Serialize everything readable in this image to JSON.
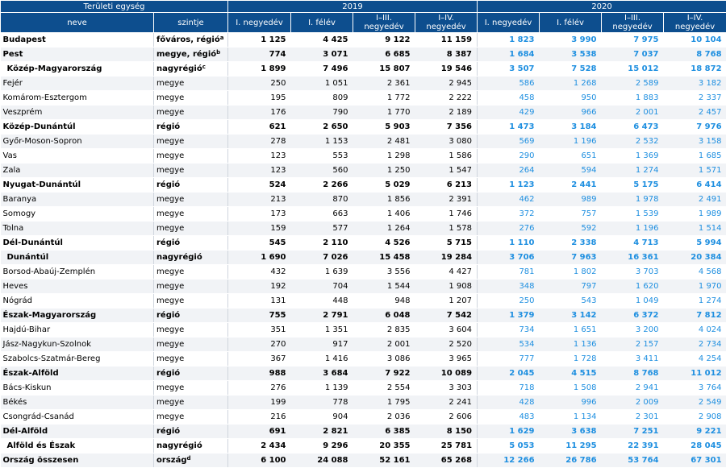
{
  "header": {
    "area_unit": "Területi egység",
    "name_col": "neve",
    "level_col": "szintje",
    "year1": "2019",
    "year2": "2020",
    "periods": [
      "I. negyedév",
      "I. félév",
      "I–III. negyedév",
      "I–IV. negyedév"
    ]
  },
  "rows": [
    {
      "name": "Budapest",
      "level": "főváros, régió",
      "sup": "a",
      "bold": true,
      "indent": false,
      "y2019": [
        "1 125",
        "4 425",
        "9 122",
        "11 159"
      ],
      "y2020": [
        "1 823",
        "3 990",
        "7 975",
        "10 104"
      ]
    },
    {
      "name": "Pest",
      "level": "megye, régió",
      "sup": "b",
      "bold": true,
      "indent": false,
      "y2019": [
        "774",
        "3 071",
        "6 685",
        "8 387"
      ],
      "y2020": [
        "1 684",
        "3 538",
        "7 037",
        "8 768"
      ]
    },
    {
      "name": "Közép-Magyarország",
      "level": "nagyrégió",
      "sup": "c",
      "bold": true,
      "indent": true,
      "y2019": [
        "1 899",
        "7 496",
        "15 807",
        "19 546"
      ],
      "y2020": [
        "3 507",
        "7 528",
        "15 012",
        "18 872"
      ]
    },
    {
      "name": "Fejér",
      "level": "megye",
      "sup": "",
      "bold": false,
      "indent": false,
      "y2019": [
        "250",
        "1 051",
        "2 361",
        "2 945"
      ],
      "y2020": [
        "586",
        "1 268",
        "2 589",
        "3 182"
      ]
    },
    {
      "name": "Komárom-Esztergom",
      "level": "megye",
      "sup": "",
      "bold": false,
      "indent": false,
      "y2019": [
        "195",
        "809",
        "1 772",
        "2 222"
      ],
      "y2020": [
        "458",
        "950",
        "1 883",
        "2 337"
      ]
    },
    {
      "name": "Veszprém",
      "level": "megye",
      "sup": "",
      "bold": false,
      "indent": false,
      "y2019": [
        "176",
        "790",
        "1 770",
        "2 189"
      ],
      "y2020": [
        "429",
        "966",
        "2 001",
        "2 457"
      ]
    },
    {
      "name": "Közép-Dunántúl",
      "level": "régió",
      "sup": "",
      "bold": true,
      "indent": false,
      "y2019": [
        "621",
        "2 650",
        "5 903",
        "7 356"
      ],
      "y2020": [
        "1 473",
        "3 184",
        "6 473",
        "7 976"
      ]
    },
    {
      "name": "Győr-Moson-Sopron",
      "level": "megye",
      "sup": "",
      "bold": false,
      "indent": false,
      "y2019": [
        "278",
        "1 153",
        "2 481",
        "3 080"
      ],
      "y2020": [
        "569",
        "1 196",
        "2 532",
        "3 158"
      ]
    },
    {
      "name": "Vas",
      "level": "megye",
      "sup": "",
      "bold": false,
      "indent": false,
      "y2019": [
        "123",
        "553",
        "1 298",
        "1 586"
      ],
      "y2020": [
        "290",
        "651",
        "1 369",
        "1 685"
      ]
    },
    {
      "name": "Zala",
      "level": "megye",
      "sup": "",
      "bold": false,
      "indent": false,
      "y2019": [
        "123",
        "560",
        "1 250",
        "1 547"
      ],
      "y2020": [
        "264",
        "594",
        "1 274",
        "1 571"
      ]
    },
    {
      "name": "Nyugat-Dunántúl",
      "level": "régió",
      "sup": "",
      "bold": true,
      "indent": false,
      "y2019": [
        "524",
        "2 266",
        "5 029",
        "6 213"
      ],
      "y2020": [
        "1 123",
        "2 441",
        "5 175",
        "6 414"
      ]
    },
    {
      "name": "Baranya",
      "level": "megye",
      "sup": "",
      "bold": false,
      "indent": false,
      "y2019": [
        "213",
        "870",
        "1 856",
        "2 391"
      ],
      "y2020": [
        "462",
        "989",
        "1 978",
        "2 491"
      ]
    },
    {
      "name": "Somogy",
      "level": "megye",
      "sup": "",
      "bold": false,
      "indent": false,
      "y2019": [
        "173",
        "663",
        "1 406",
        "1 746"
      ],
      "y2020": [
        "372",
        "757",
        "1 539",
        "1 989"
      ]
    },
    {
      "name": "Tolna",
      "level": "megye",
      "sup": "",
      "bold": false,
      "indent": false,
      "y2019": [
        "159",
        "577",
        "1 264",
        "1 578"
      ],
      "y2020": [
        "276",
        "592",
        "1 196",
        "1 514"
      ]
    },
    {
      "name": "Dél-Dunántúl",
      "level": "régió",
      "sup": "",
      "bold": true,
      "indent": false,
      "y2019": [
        "545",
        "2 110",
        "4 526",
        "5 715"
      ],
      "y2020": [
        "1 110",
        "2 338",
        "4 713",
        "5 994"
      ]
    },
    {
      "name": "Dunántúl",
      "level": "nagyrégió",
      "sup": "",
      "bold": true,
      "indent": true,
      "y2019": [
        "1 690",
        "7 026",
        "15 458",
        "19 284"
      ],
      "y2020": [
        "3 706",
        "7 963",
        "16 361",
        "20 384"
      ]
    },
    {
      "name": "Borsod-Abaúj-Zemplén",
      "level": "megye",
      "sup": "",
      "bold": false,
      "indent": false,
      "y2019": [
        "432",
        "1 639",
        "3 556",
        "4 427"
      ],
      "y2020": [
        "781",
        "1 802",
        "3 703",
        "4 568"
      ]
    },
    {
      "name": "Heves",
      "level": "megye",
      "sup": "",
      "bold": false,
      "indent": false,
      "y2019": [
        "192",
        "704",
        "1 544",
        "1 908"
      ],
      "y2020": [
        "348",
        "797",
        "1 620",
        "1 970"
      ]
    },
    {
      "name": "Nógrád",
      "level": "megye",
      "sup": "",
      "bold": false,
      "indent": false,
      "y2019": [
        "131",
        "448",
        "948",
        "1 207"
      ],
      "y2020": [
        "250",
        "543",
        "1 049",
        "1 274"
      ]
    },
    {
      "name": "Észak-Magyarország",
      "level": "régió",
      "sup": "",
      "bold": true,
      "indent": false,
      "y2019": [
        "755",
        "2 791",
        "6 048",
        "7 542"
      ],
      "y2020": [
        "1 379",
        "3 142",
        "6 372",
        "7 812"
      ]
    },
    {
      "name": "Hajdú-Bihar",
      "level": "megye",
      "sup": "",
      "bold": false,
      "indent": false,
      "y2019": [
        "351",
        "1 351",
        "2 835",
        "3 604"
      ],
      "y2020": [
        "734",
        "1 651",
        "3 200",
        "4 024"
      ]
    },
    {
      "name": "Jász-Nagykun-Szolnok",
      "level": "megye",
      "sup": "",
      "bold": false,
      "indent": false,
      "y2019": [
        "270",
        "917",
        "2 001",
        "2 520"
      ],
      "y2020": [
        "534",
        "1 136",
        "2 157",
        "2 734"
      ]
    },
    {
      "name": "Szabolcs-Szatmár-Bereg",
      "level": "megye",
      "sup": "",
      "bold": false,
      "indent": false,
      "y2019": [
        "367",
        "1 416",
        "3 086",
        "3 965"
      ],
      "y2020": [
        "777",
        "1 728",
        "3 411",
        "4 254"
      ]
    },
    {
      "name": "Észak-Alföld",
      "level": "régió",
      "sup": "",
      "bold": true,
      "indent": false,
      "y2019": [
        "988",
        "3 684",
        "7 922",
        "10 089"
      ],
      "y2020": [
        "2 045",
        "4 515",
        "8 768",
        "11 012"
      ]
    },
    {
      "name": "Bács-Kiskun",
      "level": "megye",
      "sup": "",
      "bold": false,
      "indent": false,
      "y2019": [
        "276",
        "1 139",
        "2 554",
        "3 303"
      ],
      "y2020": [
        "718",
        "1 508",
        "2 941",
        "3 764"
      ]
    },
    {
      "name": "Békés",
      "level": "megye",
      "sup": "",
      "bold": false,
      "indent": false,
      "y2019": [
        "199",
        "778",
        "1 795",
        "2 241"
      ],
      "y2020": [
        "428",
        "996",
        "2 009",
        "2 549"
      ]
    },
    {
      "name": "Csongrád-Csanád",
      "level": "megye",
      "sup": "",
      "bold": false,
      "indent": false,
      "y2019": [
        "216",
        "904",
        "2 036",
        "2 606"
      ],
      "y2020": [
        "483",
        "1 134",
        "2 301",
        "2 908"
      ]
    },
    {
      "name": "Dél-Alföld",
      "level": "régió",
      "sup": "",
      "bold": true,
      "indent": false,
      "y2019": [
        "691",
        "2 821",
        "6 385",
        "8 150"
      ],
      "y2020": [
        "1 629",
        "3 638",
        "7 251",
        "9 221"
      ]
    },
    {
      "name": "Alföld és Észak",
      "level": "nagyrégió",
      "sup": "",
      "bold": true,
      "indent": true,
      "y2019": [
        "2 434",
        "9 296",
        "20 355",
        "25 781"
      ],
      "y2020": [
        "5 053",
        "11 295",
        "22 391",
        "28 045"
      ]
    },
    {
      "name": "Ország összesen",
      "level": "ország",
      "sup": "d",
      "bold": true,
      "indent": false,
      "y2019": [
        "6 100",
        "24 088",
        "52 161",
        "65 268"
      ],
      "y2020": [
        "12 266",
        "26 786",
        "53 764",
        "67 301"
      ]
    }
  ],
  "colors": {
    "header_bg": "#0d4e8e",
    "value_2020": "#1e8fe0",
    "row_stripe": "#f1f3f6"
  }
}
